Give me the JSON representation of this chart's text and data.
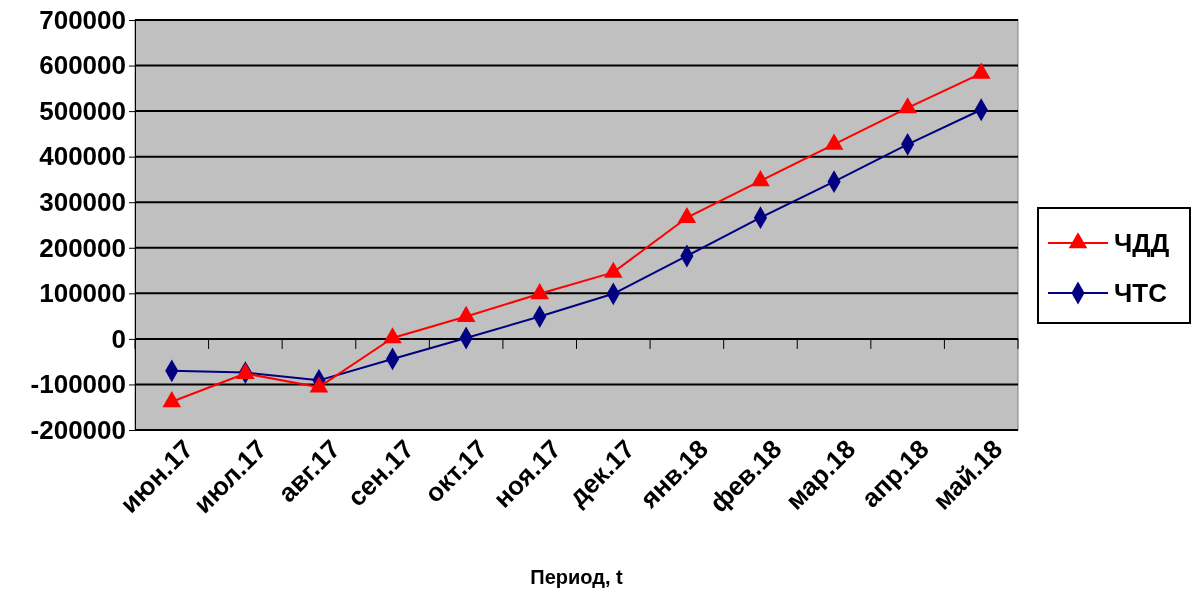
{
  "chart_data": {
    "type": "line",
    "xlabel": "Период, t",
    "categories": [
      "июн.17",
      "июл.17",
      "авг.17",
      "сен.17",
      "окт.17",
      "ноя.17",
      "дек.17",
      "янв.18",
      "фев.18",
      "мар.18",
      "апр.18",
      "май.18"
    ],
    "series": [
      {
        "name": "ЧДД",
        "color": "#ff0000",
        "marker": "triangle",
        "values": [
          -138000,
          -76000,
          -106000,
          2000,
          49000,
          99000,
          146000,
          266000,
          347000,
          427000,
          507000,
          583000
        ]
      },
      {
        "name": "ЧТС",
        "color": "#000080",
        "marker": "diamond",
        "values": [
          -70000,
          -74000,
          -91000,
          -44000,
          2000,
          49000,
          99000,
          182000,
          266000,
          345000,
          427000,
          503000
        ]
      }
    ],
    "ylim": [
      -200000,
      700000
    ],
    "yticks": [
      -200000,
      -100000,
      0,
      100000,
      200000,
      300000,
      400000,
      500000,
      600000,
      700000
    ],
    "grid": "y",
    "legend": "right"
  }
}
